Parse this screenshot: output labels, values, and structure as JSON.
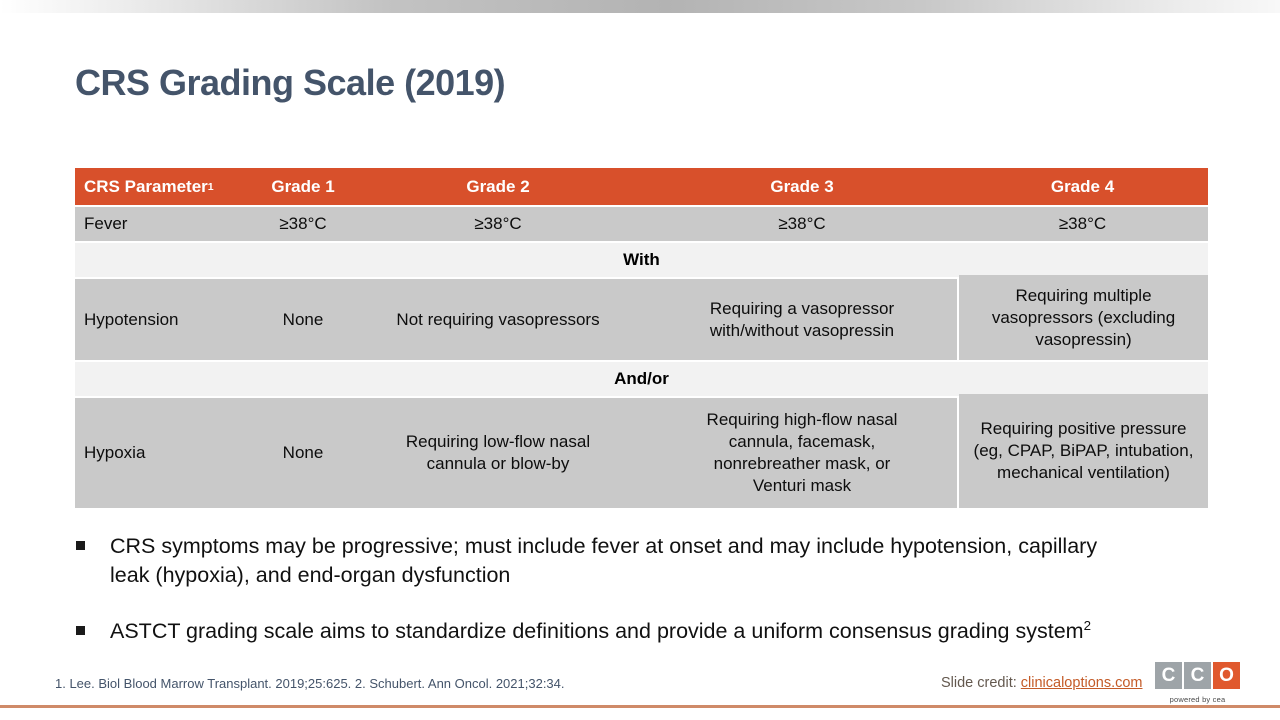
{
  "title": "CRS Grading Scale (2019)",
  "table": {
    "headers": [
      "CRS Parameter",
      "Grade 1",
      "Grade 2",
      "Grade 3",
      "Grade 4"
    ],
    "header_sup": "1",
    "fever": {
      "param": "Fever",
      "g1": "≥38°C",
      "g2": "≥38°C",
      "g3": "≥38°C",
      "g4": "≥38°C"
    },
    "with_label": "With",
    "hypotension": {
      "param": "Hypotension",
      "g1": "None",
      "g2": "Not requiring vasopressors",
      "g3": "Requiring a vasopressor with/without vasopressin",
      "g4": "Requiring multiple vasopressors (excluding vasopressin)"
    },
    "andor_label": "And/or",
    "hypoxia": {
      "param": "Hypoxia",
      "g1": "None",
      "g2": "Requiring low-flow nasal cannula or blow-by",
      "g3": "Requiring high-flow nasal cannula, facemask, nonrebreather mask, or Venturi mask",
      "g4": "Requiring positive pressure (eg, CPAP, BiPAP, intubation, mechanical ventilation)"
    }
  },
  "bullets": [
    {
      "text": "CRS symptoms may be progressive; must include fever at onset and may include hypotension, capillary leak (hypoxia), and end-organ dysfunction",
      "sup": ""
    },
    {
      "text": "ASTCT grading scale aims to standardize definitions and provide a uniform consensus grading system",
      "sup": "2"
    }
  ],
  "footer": {
    "footnote": "1. Lee. Biol Blood Marrow Transplant. 2019;25:625. 2. Schubert. Ann Oncol. 2021;32:34.",
    "credit_label": "Slide credit: ",
    "credit_link": "clinicaloptions.com",
    "logo_letters": [
      "C",
      "C",
      "O"
    ],
    "powered_by": "powered by cea"
  },
  "colors": {
    "header_orange": "#d8502b",
    "row_gray": "#c9c9c9",
    "band_gray": "#f2f2f2",
    "title_color": "#44546a",
    "link_orange": "#c45b28",
    "bottom_line": "#cf8a68",
    "logo_gray": "#9ea4a8",
    "logo_orange": "#e0592e"
  }
}
